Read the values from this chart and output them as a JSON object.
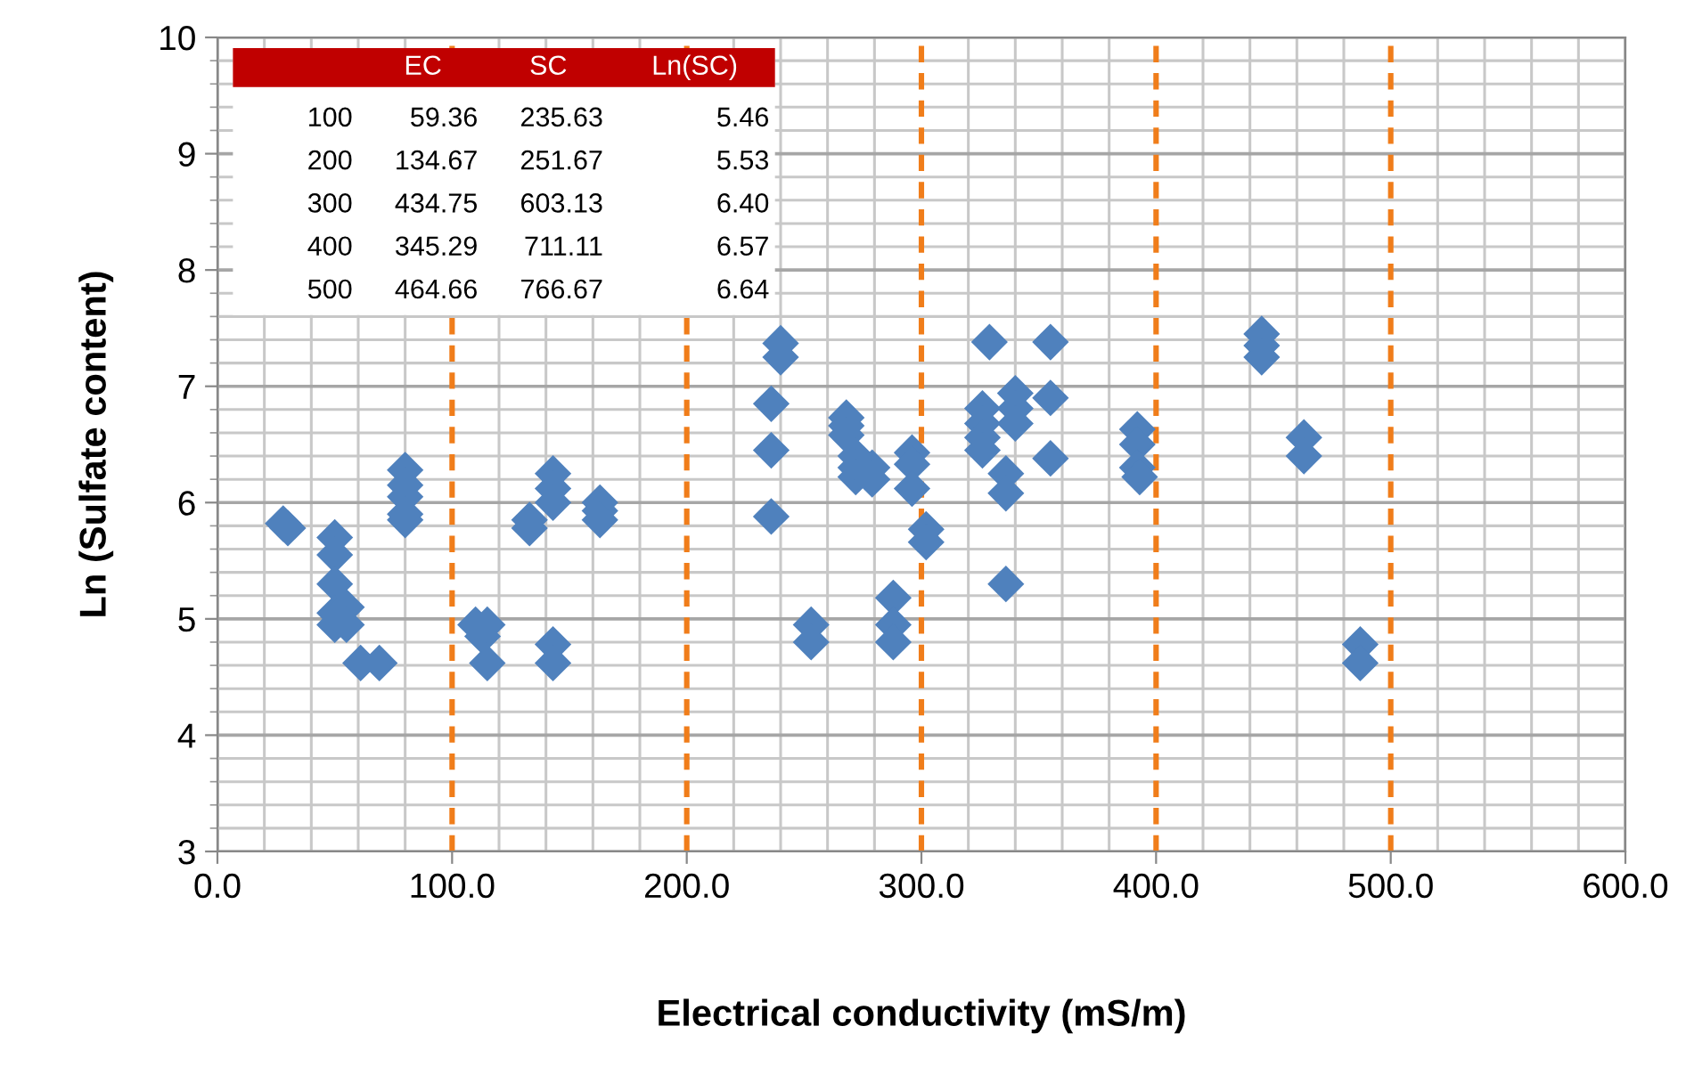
{
  "chart_data": {
    "type": "scatter",
    "xlabel": "Electrical conductivity (mS/m)",
    "ylabel": "Ln (Sulfate content)",
    "x": [
      28,
      30,
      50,
      50,
      50,
      50,
      50,
      55,
      55,
      61,
      69,
      80,
      80,
      80,
      80,
      80,
      110,
      113,
      115,
      115,
      133,
      133,
      143,
      143,
      143,
      143,
      143,
      163,
      163,
      163,
      236,
      236,
      236,
      240,
      240,
      253,
      253,
      268,
      268,
      268,
      272,
      272,
      272,
      279,
      279,
      288,
      288,
      288,
      296,
      296,
      296,
      302,
      302,
      326,
      326,
      326,
      326,
      329,
      336,
      336,
      336,
      340,
      340,
      340,
      355,
      355,
      355,
      392,
      392,
      392,
      393,
      445,
      445,
      445,
      463,
      463,
      487,
      487
    ],
    "series": [
      {
        "color": "#4f81bd",
        "values": [
          5.82,
          5.78,
          5.7,
          5.55,
          5.3,
          5.05,
          4.95,
          5.1,
          4.95,
          4.62,
          4.62,
          6.28,
          6.15,
          6.05,
          5.9,
          5.85,
          4.95,
          4.85,
          4.95,
          4.62,
          5.85,
          5.78,
          6.25,
          6.12,
          6.0,
          4.78,
          4.62,
          6.0,
          5.93,
          5.85,
          6.85,
          6.45,
          5.88,
          7.37,
          7.25,
          4.95,
          4.8,
          6.73,
          6.66,
          6.58,
          6.4,
          6.3,
          6.22,
          6.3,
          6.2,
          5.18,
          4.95,
          4.8,
          6.43,
          6.33,
          6.12,
          5.77,
          5.66,
          6.81,
          6.68,
          6.56,
          6.45,
          7.38,
          6.25,
          6.08,
          5.3,
          6.94,
          6.81,
          6.68,
          7.38,
          6.9,
          6.38,
          6.63,
          6.5,
          6.3,
          6.22,
          7.45,
          7.35,
          7.25,
          6.56,
          6.4,
          4.78,
          4.62
        ]
      }
    ],
    "xlim": [
      0,
      600
    ],
    "ylim": [
      3,
      10
    ],
    "xticks": [
      {
        "value": 0,
        "label": "0.0"
      },
      {
        "value": 100,
        "label": "100.0"
      },
      {
        "value": 200,
        "label": "200.0"
      },
      {
        "value": 300,
        "label": "300.0"
      },
      {
        "value": 400,
        "label": "400.0"
      },
      {
        "value": 500,
        "label": "500.0"
      },
      {
        "value": 600,
        "label": "600.0"
      }
    ],
    "yticks": [
      3,
      4,
      5,
      6,
      7,
      8,
      9,
      10
    ],
    "grid": true,
    "marker": "diamond",
    "ref_lines": [
      {
        "axis": "x",
        "value": 100,
        "color": "#f07d1a",
        "line_style": "dashed"
      },
      {
        "axis": "x",
        "value": 200,
        "color": "#f07d1a",
        "line_style": "dashed"
      },
      {
        "axis": "x",
        "value": 300,
        "color": "#f07d1a",
        "line_style": "dashed"
      },
      {
        "axis": "x",
        "value": 400,
        "color": "#f07d1a",
        "line_style": "dashed"
      },
      {
        "axis": "x",
        "value": 500,
        "color": "#f07d1a",
        "line_style": "dashed"
      }
    ],
    "annotations": [
      "EC",
      "SC",
      "Ln(SC)",
      "100",
      "59.36",
      "235.63",
      "5.46",
      "200",
      "134.67",
      "251.67",
      "5.53",
      "300",
      "434.75",
      "603.13",
      "6.40",
      "400",
      "345.29",
      "711.11",
      "6.57",
      "500",
      "464.66",
      "766.67",
      "6.64"
    ]
  }
}
